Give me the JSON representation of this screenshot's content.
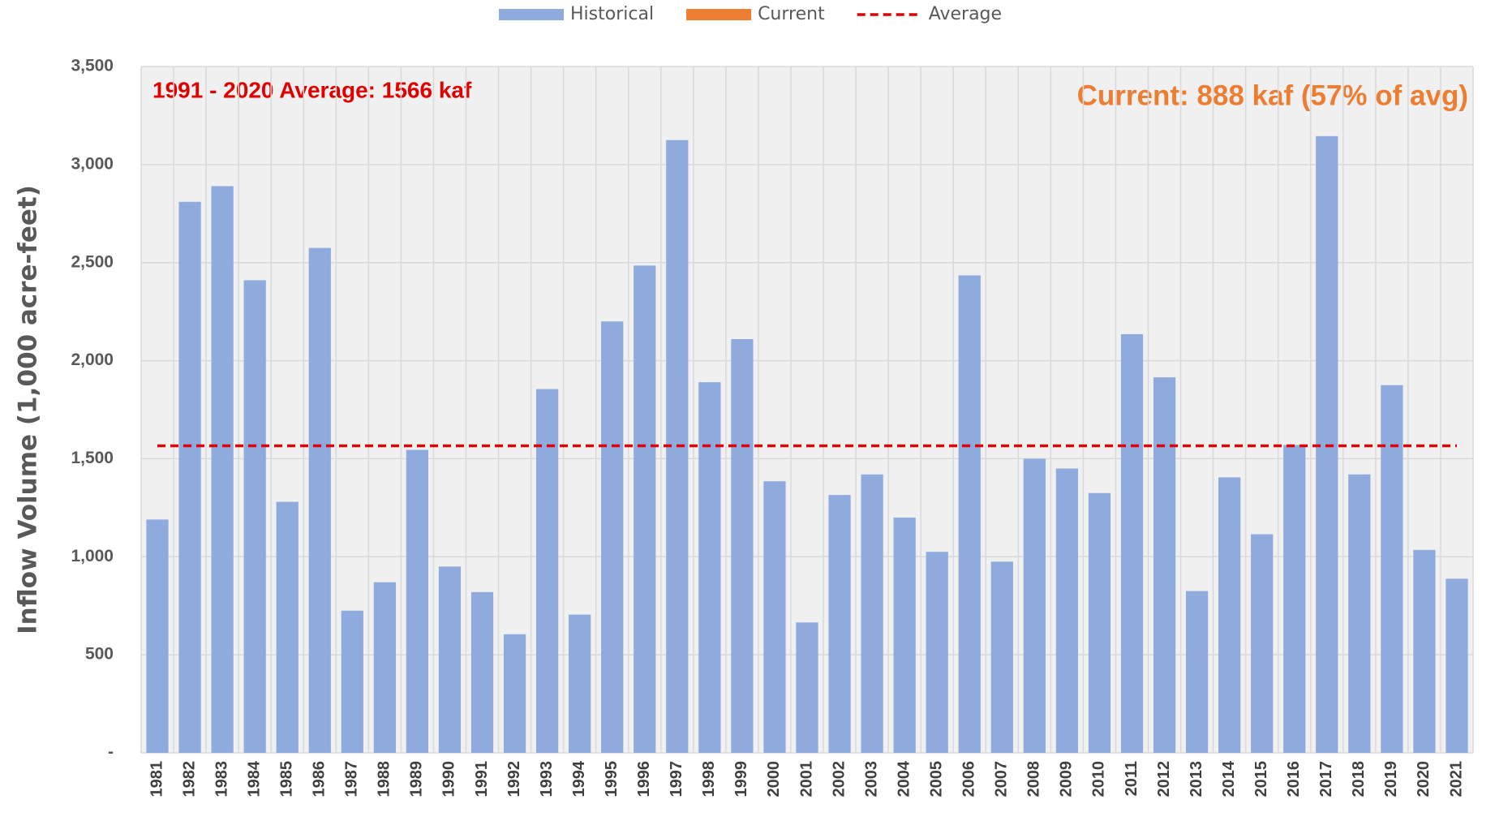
{
  "chart_data": {
    "type": "bar",
    "y_label": "Inflow Volume (1,000 acre-feet)",
    "annotations": [
      {
        "text": "1991 - 2020 Average: 1566 kaf",
        "color": "#e00000"
      },
      {
        "text": "Current: 888 kaf (57% of avg)",
        "color": "#ed7d31"
      }
    ],
    "categories": [
      "1981",
      "1982",
      "1983",
      "1984",
      "1985",
      "1986",
      "1987",
      "1988",
      "1989",
      "1990",
      "1991",
      "1992",
      "1993",
      "1994",
      "1995",
      "1996",
      "1997",
      "1998",
      "1999",
      "2000",
      "2001",
      "2002",
      "2003",
      "2004",
      "2005",
      "2006",
      "2007",
      "2008",
      "2009",
      "2010",
      "2011",
      "2012",
      "2013",
      "2014",
      "2015",
      "2016",
      "2017",
      "2018",
      "2019",
      "2020",
      "2021"
    ],
    "series": [
      {
        "name": "Historical",
        "type": "bar",
        "color": "#8faadc",
        "values": [
          1190,
          2810,
          2890,
          2410,
          1280,
          2575,
          725,
          870,
          1545,
          950,
          820,
          605,
          1855,
          705,
          2200,
          2485,
          3125,
          1890,
          2110,
          1385,
          665,
          1315,
          1420,
          1200,
          1025,
          2435,
          975,
          1500,
          1450,
          1325,
          2135,
          1915,
          825,
          1405,
          1115,
          1570,
          3145,
          1420,
          1875,
          1035,
          888
        ]
      },
      {
        "name": "Current",
        "type": "bar",
        "color": "#ed7d31",
        "values": [
          null,
          null,
          null,
          null,
          null,
          null,
          null,
          null,
          null,
          null,
          null,
          null,
          null,
          null,
          null,
          null,
          null,
          null,
          null,
          null,
          null,
          null,
          null,
          null,
          null,
          null,
          null,
          null,
          null,
          null,
          null,
          null,
          null,
          null,
          null,
          null,
          null,
          null,
          null,
          null,
          null
        ]
      },
      {
        "name": "Average",
        "type": "line",
        "dashed": true,
        "color": "#e00000",
        "values": [
          1566,
          1566,
          1566,
          1566,
          1566,
          1566,
          1566,
          1566,
          1566,
          1566,
          1566,
          1566,
          1566,
          1566,
          1566,
          1566,
          1566,
          1566,
          1566,
          1566,
          1566,
          1566,
          1566,
          1566,
          1566,
          1566,
          1566,
          1566,
          1566,
          1566,
          1566,
          1566,
          1566,
          1566,
          1566,
          1566,
          1566,
          1566,
          1566,
          1566,
          1566
        ]
      }
    ],
    "ylim": [
      0,
      3500
    ],
    "yticks": [
      {
        "value": 0,
        "label": "-"
      },
      500,
      {
        "value": 1000,
        "label": "1,000"
      },
      {
        "value": 1500,
        "label": "1,500"
      },
      {
        "value": 2000,
        "label": "2,000"
      },
      {
        "value": 2500,
        "label": "2,500"
      },
      {
        "value": 3000,
        "label": "3,000"
      },
      {
        "value": 3500,
        "label": "3,500"
      }
    ],
    "grid": true,
    "legend": "top"
  }
}
